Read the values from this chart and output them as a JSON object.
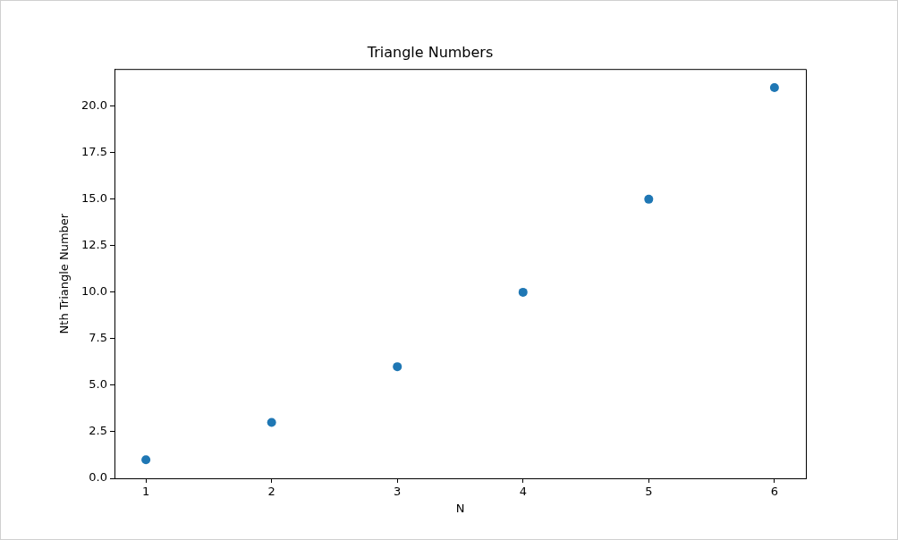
{
  "chart_data": {
    "type": "scatter",
    "title": "Triangle Numbers",
    "xlabel": "N",
    "ylabel": "Nth Triangle Number",
    "x": [
      1,
      2,
      3,
      4,
      5,
      6
    ],
    "series": [
      {
        "color": "#1f77b4",
        "values": [
          1,
          3,
          6,
          10,
          15,
          21
        ]
      }
    ],
    "xlim": [
      0.75,
      6.25
    ],
    "xticks": [
      1,
      2,
      3,
      4,
      5,
      6
    ],
    "ylim": [
      0,
      22
    ],
    "yticks": [
      {
        "value": 0,
        "label": "0.0"
      },
      {
        "value": 2.5,
        "label": "2.5"
      },
      {
        "value": 5,
        "label": "5.0"
      },
      {
        "value": 7.5,
        "label": "7.5"
      },
      {
        "value": 10,
        "label": "10.0"
      },
      {
        "value": 12.5,
        "label": "12.5"
      },
      {
        "value": 15,
        "label": "15.0"
      },
      {
        "value": 17.5,
        "label": "17.5"
      },
      {
        "value": 20,
        "label": "20.0"
      }
    ],
    "grid": false,
    "legend": false,
    "marker": "circle"
  }
}
